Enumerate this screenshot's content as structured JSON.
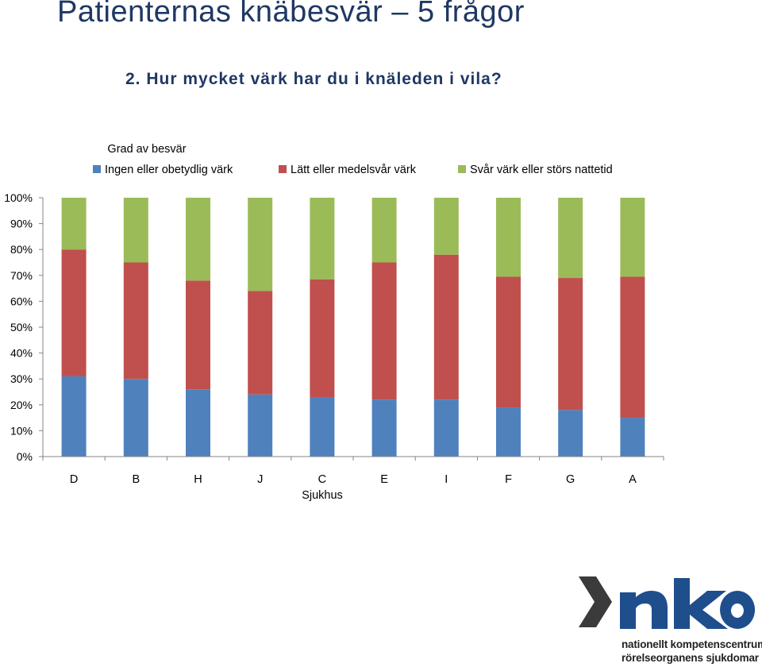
{
  "page": {
    "title": "Patienternas knäbesvär – 5 frågor",
    "question": "2. Hur mycket värk har du i knäleden i vila?"
  },
  "chart_data": {
    "type": "bar",
    "stacked": true,
    "legend_title": "Grad av besvär",
    "legend_position": "top",
    "categories": [
      "D",
      "B",
      "H",
      "J",
      "C",
      "E",
      "I",
      "F",
      "G",
      "A"
    ],
    "xlabel": "Sjukhus",
    "ylabel": "",
    "ylim": [
      0,
      100
    ],
    "yticks": [
      "0%",
      "10%",
      "20%",
      "30%",
      "40%",
      "50%",
      "60%",
      "70%",
      "80%",
      "90%",
      "100%"
    ],
    "grid": false,
    "series": [
      {
        "name": "Ingen eller obetydlig värk",
        "color": "#4f81bd",
        "values": [
          31,
          30,
          26,
          24,
          23,
          22,
          22,
          19,
          18,
          15
        ]
      },
      {
        "name": "Lätt eller medelsvår värk",
        "color": "#c0504d",
        "values": [
          49,
          45,
          42,
          40,
          45.5,
          53,
          56,
          50.5,
          51,
          54.5
        ]
      },
      {
        "name": "Svår värk eller störs nattetid",
        "color": "#9bbb59",
        "values": [
          20,
          25,
          32,
          36,
          31.5,
          25,
          22,
          30.5,
          31,
          30.5
        ]
      }
    ]
  },
  "logo": {
    "wordmark": "NKO",
    "line1": "nationellt kompetenscentrum",
    "line2": "rörelseorganens sjukdomar",
    "color": "#1f4e8c"
  }
}
